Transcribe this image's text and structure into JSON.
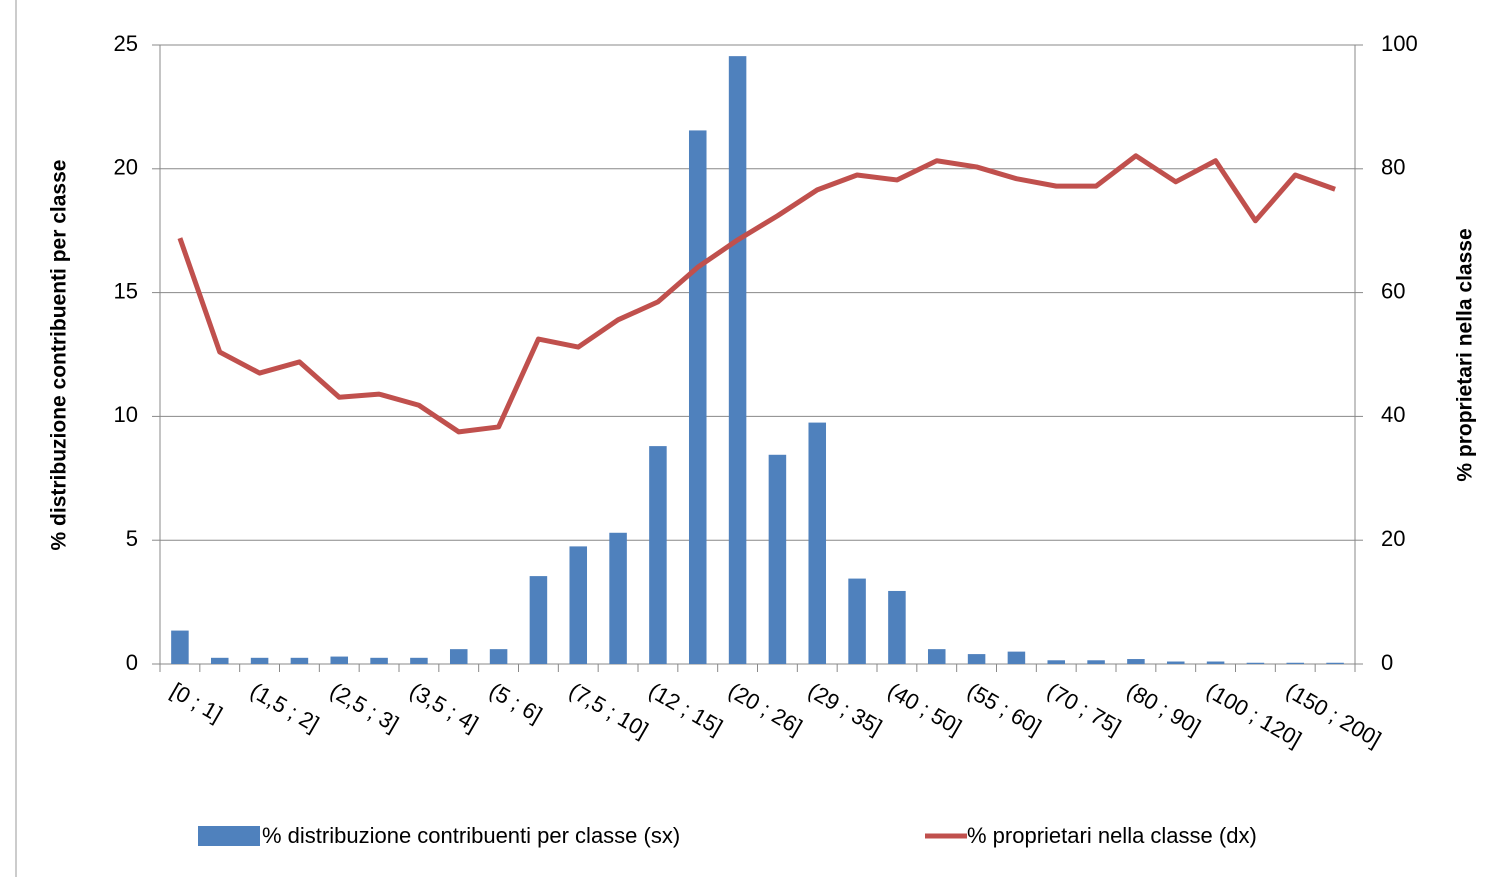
{
  "chart_data": {
    "type": "bar-line",
    "y_label": "% distribuzione contribuenti per classe",
    "y2_label": "% proprietari nella classe",
    "categories": [
      "[0 ; 1]",
      null,
      "(1,5 ; 2]",
      null,
      "(2,5 ; 3]",
      null,
      "(3,5 ; 4]",
      null,
      "(5 ; 6]",
      null,
      "(7,5 ; 10]",
      null,
      "(12 ; 15]",
      null,
      "(20 ; 26]",
      null,
      "(29 ; 35]",
      null,
      "(40 ; 50]",
      null,
      "(55 ; 60]",
      null,
      "(70 ; 75]",
      null,
      "(80 ; 90]",
      null,
      "(100 ; 120]",
      null,
      "(150 ; 200]",
      null
    ],
    "series": [
      {
        "name": "% distribuzione contribuenti per classe  (sx)",
        "color": "#4f81bd",
        "kind": "bar",
        "values": [
          1.35,
          0.25,
          0.25,
          0.25,
          0.3,
          0.25,
          0.25,
          0.6,
          0.6,
          3.55,
          4.75,
          5.3,
          8.8,
          21.55,
          24.55,
          8.45,
          9.75,
          3.45,
          2.95,
          0.6,
          0.4,
          0.5,
          0.15,
          0.15,
          0.2,
          0.1,
          0.1,
          0.05,
          0.05,
          0.05
        ]
      },
      {
        "name": "% proprietari nella classe (dx)",
        "color": "#c0504d",
        "kind": "line",
        "axis": "y2",
        "values": [
          68.8,
          50.4,
          47,
          48.8,
          43.1,
          43.6,
          41.8,
          37.5,
          38.3,
          52.5,
          51.2,
          55.6,
          58.5,
          64.1,
          68.5,
          72.4,
          76.6,
          79,
          78.2,
          81.3,
          80.3,
          78.4,
          77.2,
          77.2,
          82.1,
          77.9,
          81.3,
          71.6,
          79,
          76.7
        ]
      }
    ],
    "ylim": [
      0,
      25
    ],
    "yticks": [
      0,
      5,
      10,
      15,
      20,
      25
    ],
    "y2lim": [
      0,
      100
    ],
    "y2ticks": [
      0,
      20,
      40,
      60,
      80,
      100
    ],
    "grid": true
  }
}
